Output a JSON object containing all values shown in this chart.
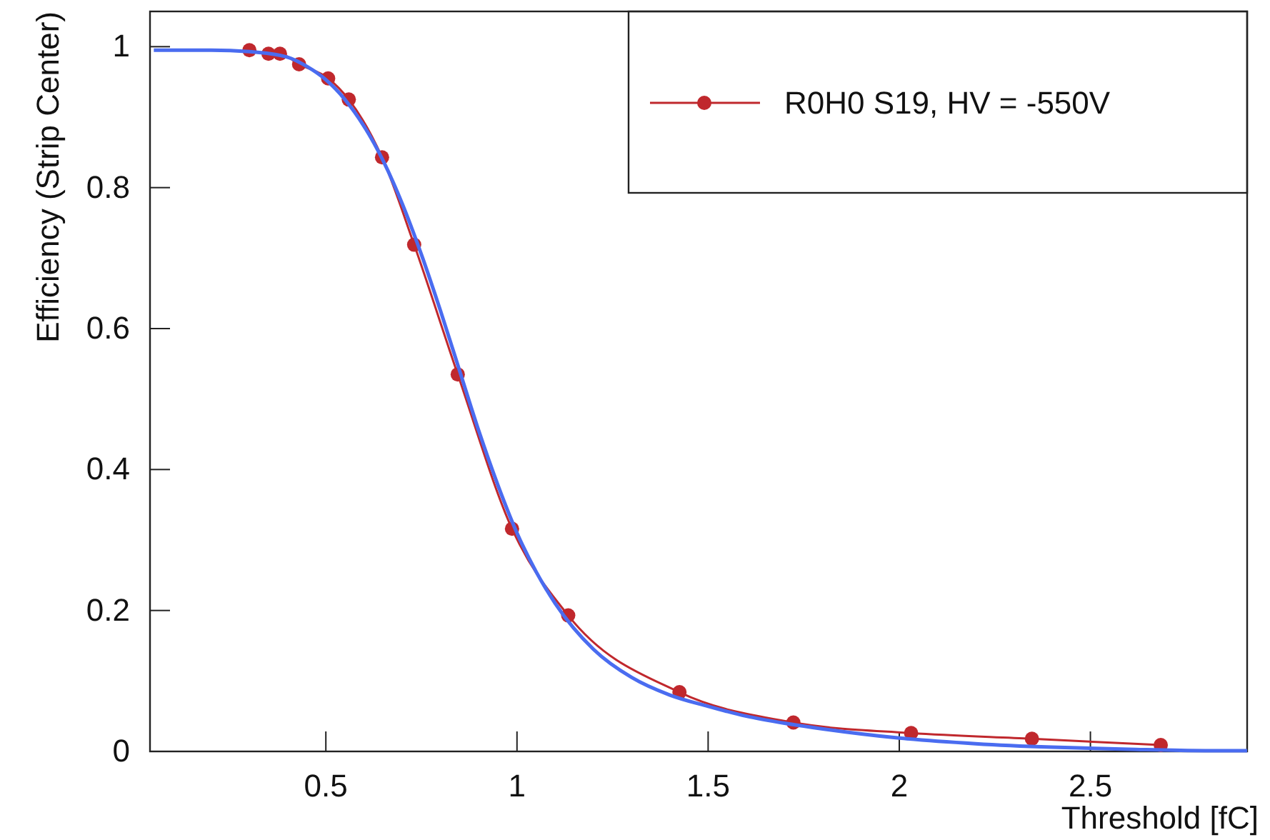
{
  "chart_data": {
    "type": "line",
    "xlabel": "Threshold [fC]",
    "ylabel": "Efficiency (Strip Center)",
    "xlim": [
      0.04,
      2.91
    ],
    "ylim": [
      0,
      1.05
    ],
    "xticks": [
      0.5,
      1,
      1.5,
      2,
      2.5
    ],
    "yticks": [
      0,
      0.2,
      0.4,
      0.6,
      0.8,
      1
    ],
    "grid": false,
    "legend": "top right",
    "series": [
      {
        "name": "R0H0 S19, HV = -550V",
        "color": "#c0282d",
        "marker": "circle",
        "line_style": "solid",
        "x": [
          0.3,
          0.35,
          0.38,
          0.43,
          0.506,
          0.56,
          0.647,
          0.731,
          0.845,
          0.987,
          1.134,
          1.425,
          1.723,
          2.031,
          2.347,
          2.684
        ],
        "values": [
          0.995,
          0.99,
          0.99,
          0.975,
          0.955,
          0.925,
          0.843,
          0.719,
          0.535,
          0.316,
          0.193,
          0.084,
          0.041,
          0.026,
          0.018,
          0.009
        ]
      },
      {
        "color": "#4a6cf0",
        "marker": "none",
        "line_style": "solid",
        "x": [
          0.05,
          0.2,
          0.3,
          0.4,
          0.45,
          0.5,
          0.55,
          0.6,
          0.65,
          0.7,
          0.75,
          0.8,
          0.85,
          0.9,
          0.95,
          1.0,
          1.05,
          1.1,
          1.2,
          1.3,
          1.4,
          1.5,
          1.6,
          1.7,
          1.8,
          2.0,
          2.2,
          2.4,
          2.6,
          2.8,
          2.91
        ],
        "values": [
          0.995,
          0.995,
          0.993,
          0.985,
          0.972,
          0.953,
          0.925,
          0.887,
          0.838,
          0.777,
          0.705,
          0.625,
          0.54,
          0.455,
          0.378,
          0.31,
          0.255,
          0.21,
          0.145,
          0.105,
          0.08,
          0.064,
          0.05,
          0.04,
          0.032,
          0.019,
          0.011,
          0.006,
          0.003,
          0.001,
          0.001
        ]
      }
    ]
  }
}
